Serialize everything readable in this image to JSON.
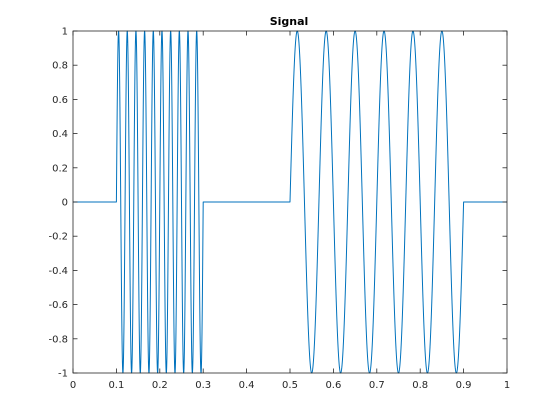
{
  "chart_data": {
    "type": "line",
    "title": "Signal",
    "xlabel": "",
    "ylabel": "",
    "xlim": [
      0,
      1
    ],
    "ylim": [
      -1,
      1
    ],
    "grid": false,
    "x_ticks": [
      "0",
      "0.1",
      "0.2",
      "0.3",
      "0.4",
      "0.5",
      "0.6",
      "0.7",
      "0.8",
      "0.9",
      "1"
    ],
    "y_ticks": [
      "-1",
      "-0.8",
      "-0.6",
      "-0.4",
      "-0.2",
      "0",
      "0.2",
      "0.4",
      "0.6",
      "0.8",
      "1"
    ],
    "series": [
      {
        "color": "#0072BD",
        "segments": [
          {
            "x_start": 0.0,
            "x_end": 0.1,
            "kind": "constant",
            "value": 0
          },
          {
            "x_start": 0.1,
            "x_end": 0.3,
            "kind": "sine",
            "amplitude": 1,
            "frequency": 50
          },
          {
            "x_start": 0.3,
            "x_end": 0.5,
            "kind": "constant",
            "value": 0
          },
          {
            "x_start": 0.5,
            "x_end": 0.9,
            "kind": "sine",
            "amplitude": 1,
            "frequency": 15
          },
          {
            "x_start": 0.9,
            "x_end": 1.0,
            "kind": "constant",
            "value": 0
          }
        ]
      }
    ]
  }
}
